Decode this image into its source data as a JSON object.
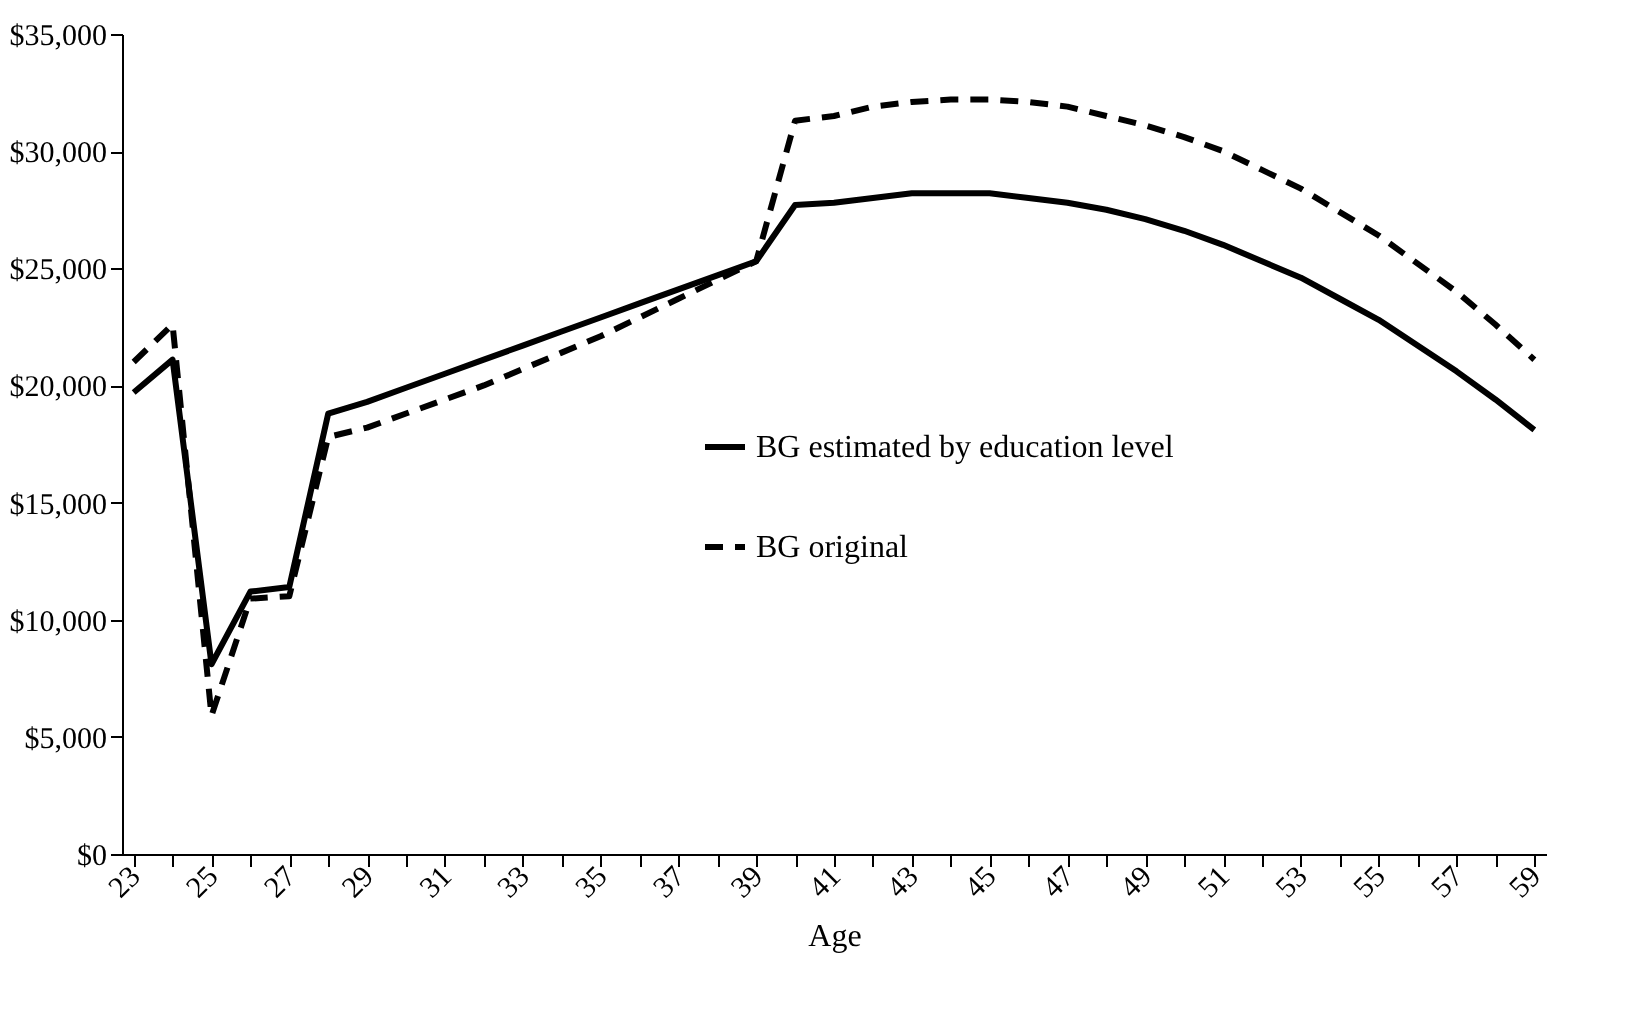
{
  "chart_data": {
    "type": "line",
    "xlabel": "Age",
    "categories": [
      "23",
      null,
      "25",
      null,
      "27",
      null,
      "29",
      null,
      "31",
      null,
      "33",
      null,
      "35",
      null,
      "37",
      null,
      "39",
      null,
      "41",
      null,
      "43",
      null,
      "45",
      null,
      "47",
      null,
      "49",
      null,
      "51",
      null,
      "53",
      null,
      "55",
      null,
      "57",
      null,
      "59"
    ],
    "series": [
      {
        "name": "BG estimated by education level",
        "color": "#000000",
        "line_style": "solid",
        "values": [
          19700,
          21100,
          8100,
          11200,
          11400,
          18800,
          19300,
          19900,
          20500,
          21100,
          21700,
          22300,
          22900,
          23500,
          24100,
          24700,
          25300,
          27700,
          27800,
          28000,
          28200,
          28200,
          28200,
          28000,
          27800,
          27500,
          27100,
          26600,
          26000,
          25300,
          24600,
          23700,
          22800,
          21700,
          20600,
          19400,
          18100
        ]
      },
      {
        "name": "BG original",
        "color": "#000000",
        "line_style": "dashed",
        "values": [
          21000,
          22600,
          5900,
          10900,
          11000,
          17800,
          18200,
          18800,
          19400,
          20000,
          20700,
          21400,
          22100,
          22900,
          23700,
          24500,
          25300,
          31300,
          31500,
          31900,
          32100,
          32200,
          32200,
          32100,
          31900,
          31500,
          31100,
          30600,
          30000,
          29200,
          28400,
          27400,
          26400,
          25200,
          24000,
          22600,
          21100
        ]
      }
    ],
    "ylim": [
      0,
      35000
    ],
    "yticks": [
      {
        "value": 0,
        "label": "$0"
      },
      {
        "value": 5000,
        "label": "$5,000"
      },
      {
        "value": 10000,
        "label": "$10,000"
      },
      {
        "value": 15000,
        "label": "$15,000"
      },
      {
        "value": 20000,
        "label": "$20,000"
      },
      {
        "value": 25000,
        "label": "$25,000"
      },
      {
        "value": 30000,
        "label": "$30,000"
      },
      {
        "value": 35000,
        "label": "$35,000"
      }
    ],
    "grid": false,
    "legend": "center"
  }
}
